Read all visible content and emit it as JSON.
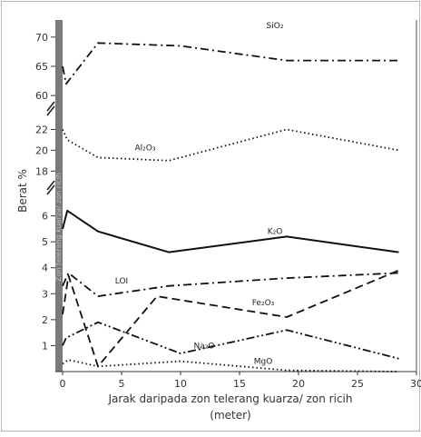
{
  "chart_data": {
    "type": "line",
    "title": "",
    "xlabel": "Jarak daripada zon telerang kuarza/ zon ricih",
    "xlabel_unit": "(meter)",
    "ylabel": "Berat %",
    "zone_label": "Zon telerang kuarza/ zon ricih",
    "xlim": [
      0,
      30
    ],
    "x_ticks": [
      "0",
      "5",
      "10",
      "15",
      "20",
      "25",
      "30"
    ],
    "y_segments": [
      {
        "range": [
          0,
          7
        ],
        "ticks": [
          "1",
          "2",
          "3",
          "4",
          "5",
          "6"
        ]
      },
      {
        "range": [
          17.5,
          23
        ],
        "ticks": [
          "18",
          "20",
          "22"
        ]
      },
      {
        "range": [
          58,
          72
        ],
        "ticks": [
          "60",
          "65",
          "70"
        ]
      }
    ],
    "grid": false,
    "legend": "inline-labels",
    "series": [
      {
        "name": "SiO₂",
        "segment": 2,
        "line": "dash-dot",
        "x": [
          0,
          0.3,
          3,
          10,
          19,
          28.5
        ],
        "y": [
          65,
          62,
          69,
          68.5,
          66,
          66
        ]
      },
      {
        "name": "Al₂O₃",
        "segment": 1,
        "line": "dotted",
        "x": [
          0,
          0.4,
          3,
          9,
          19,
          28.5
        ],
        "y": [
          22,
          21,
          19.3,
          19,
          22,
          20
        ]
      },
      {
        "name": "K₂O",
        "segment": 0,
        "line": "solid",
        "x": [
          0,
          0.4,
          3,
          9,
          19,
          28.5
        ],
        "y": [
          5.5,
          6.2,
          5.4,
          4.6,
          5.2,
          4.6
        ]
      },
      {
        "name": "LOI",
        "segment": 0,
        "line": "dash-dot",
        "x": [
          0,
          0.5,
          3,
          9,
          19,
          28.5
        ],
        "y": [
          3.3,
          3.8,
          2.9,
          3.3,
          3.6,
          3.8
        ]
      },
      {
        "name": "Fe₂O₃",
        "segment": 0,
        "line": "dashed",
        "x": [
          0,
          0.5,
          3,
          8,
          19,
          28.5
        ],
        "y": [
          2.2,
          3.7,
          0.2,
          2.9,
          2.1,
          3.9
        ]
      },
      {
        "name": "Na₂O",
        "segment": 0,
        "line": "dash-dot-dot",
        "x": [
          0,
          0.3,
          3,
          10,
          19,
          28.5
        ],
        "y": [
          1.0,
          1.3,
          1.9,
          0.7,
          1.6,
          0.5
        ]
      },
      {
        "name": "MgO",
        "segment": 0,
        "line": "dotted",
        "x": [
          0,
          0.5,
          3,
          10,
          19,
          28.5
        ],
        "y": [
          0.3,
          0.45,
          0.2,
          0.4,
          0.05,
          0.0
        ]
      }
    ]
  }
}
